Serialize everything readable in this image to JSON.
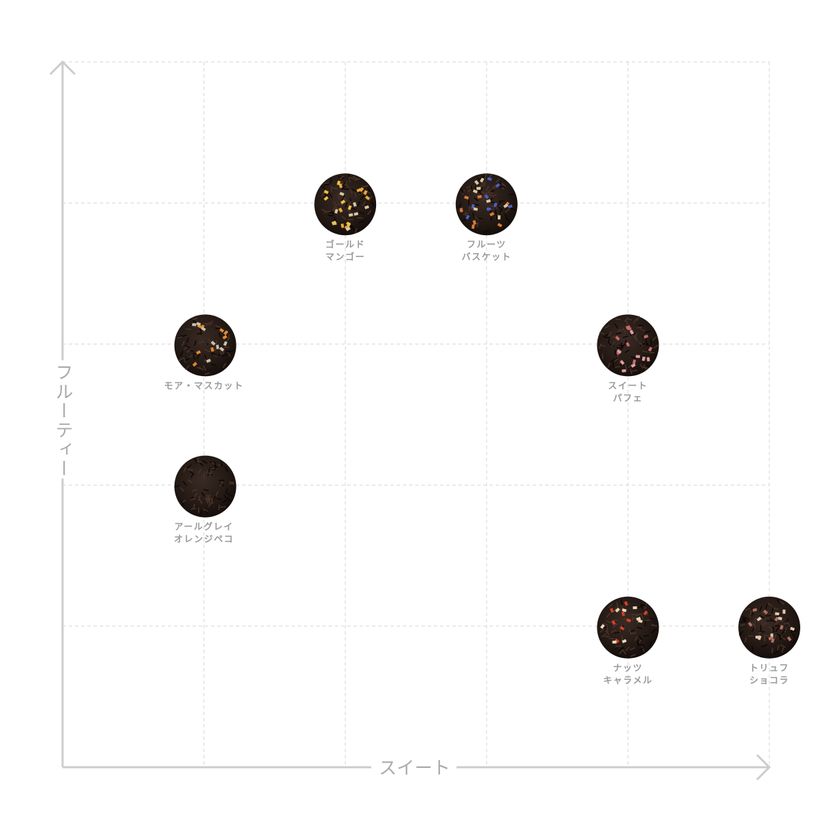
{
  "chart_data": {
    "type": "scatter",
    "xlabel": "スイート",
    "ylabel": "フルーティー",
    "xlim": [
      0,
      5
    ],
    "ylim": [
      0,
      5
    ],
    "grid": true,
    "axis_color": "#cccccc",
    "grid_color": "#d6d6d6",
    "label_color": "#9a9a9a",
    "points": [
      {
        "name_lines": [
          "ゴールド",
          "マンゴー"
        ],
        "x": 2,
        "y": 4,
        "accents": [
          "#e8a93a",
          "#d9c8a0",
          "#f0c040"
        ]
      },
      {
        "name_lines": [
          "フルーツ",
          "バスケット"
        ],
        "x": 3,
        "y": 4,
        "accents": [
          "#4a5fc0",
          "#d87a3a",
          "#d9c8a0"
        ]
      },
      {
        "name_lines": [
          "モア・マスカット"
        ],
        "x": 1,
        "y": 3,
        "accents": [
          "#e08a30",
          "#c9c2a8"
        ]
      },
      {
        "name_lines": [
          "スイート",
          "パフェ"
        ],
        "x": 4,
        "y": 3,
        "accents": [
          "#c46a6a",
          "#e0a0a0"
        ]
      },
      {
        "name_lines": [
          "アールグレイ",
          "オレンジペコ"
        ],
        "x": 1,
        "y": 2,
        "accents": []
      },
      {
        "name_lines": [
          "ナッツ",
          "キャラメル"
        ],
        "x": 4,
        "y": 1,
        "accents": [
          "#d0402a",
          "#e8d8b8"
        ]
      },
      {
        "name_lines": [
          "トリュフ",
          "ショコラ"
        ],
        "x": 5,
        "y": 1,
        "accents": [
          "#e0c8b0",
          "#b07060"
        ]
      }
    ]
  }
}
